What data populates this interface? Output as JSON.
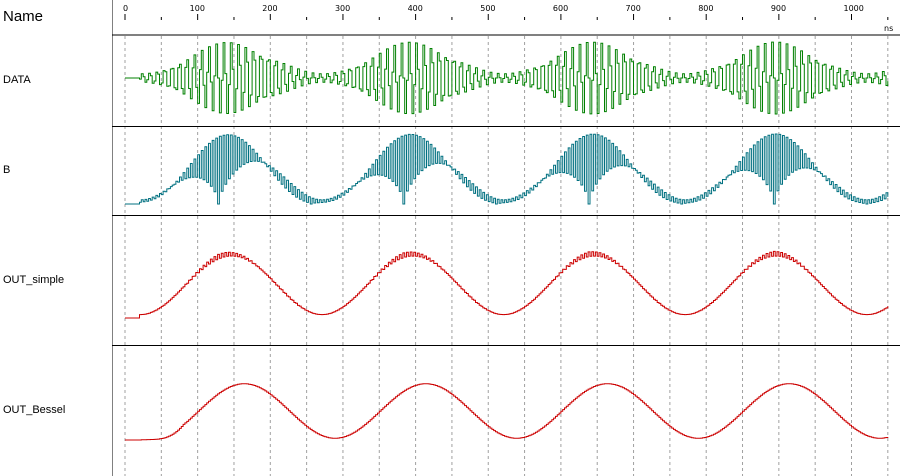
{
  "header": {
    "name_label": "Name",
    "time_unit": "ns"
  },
  "ruler": {
    "labels": [
      "0",
      "100",
      "200",
      "300",
      "400",
      "500",
      "600",
      "700",
      "800",
      "900",
      "1000"
    ],
    "max_ns": 1050
  },
  "colors": {
    "grid": "#a0a0a0",
    "divider": "#000000",
    "data": "#008000",
    "b": "#007080",
    "out_simple": "#cc0000",
    "out_bessel": "#cc0000"
  },
  "signals": [
    {
      "id": "data",
      "label": "DATA",
      "color": "#008000"
    },
    {
      "id": "b",
      "label": "B",
      "color": "#007080"
    },
    {
      "id": "out_simple",
      "label": "OUT_simple",
      "color": "#cc0000"
    },
    {
      "id": "out_bessel",
      "label": "OUT_Bessel",
      "color": "#cc0000"
    }
  ]
}
